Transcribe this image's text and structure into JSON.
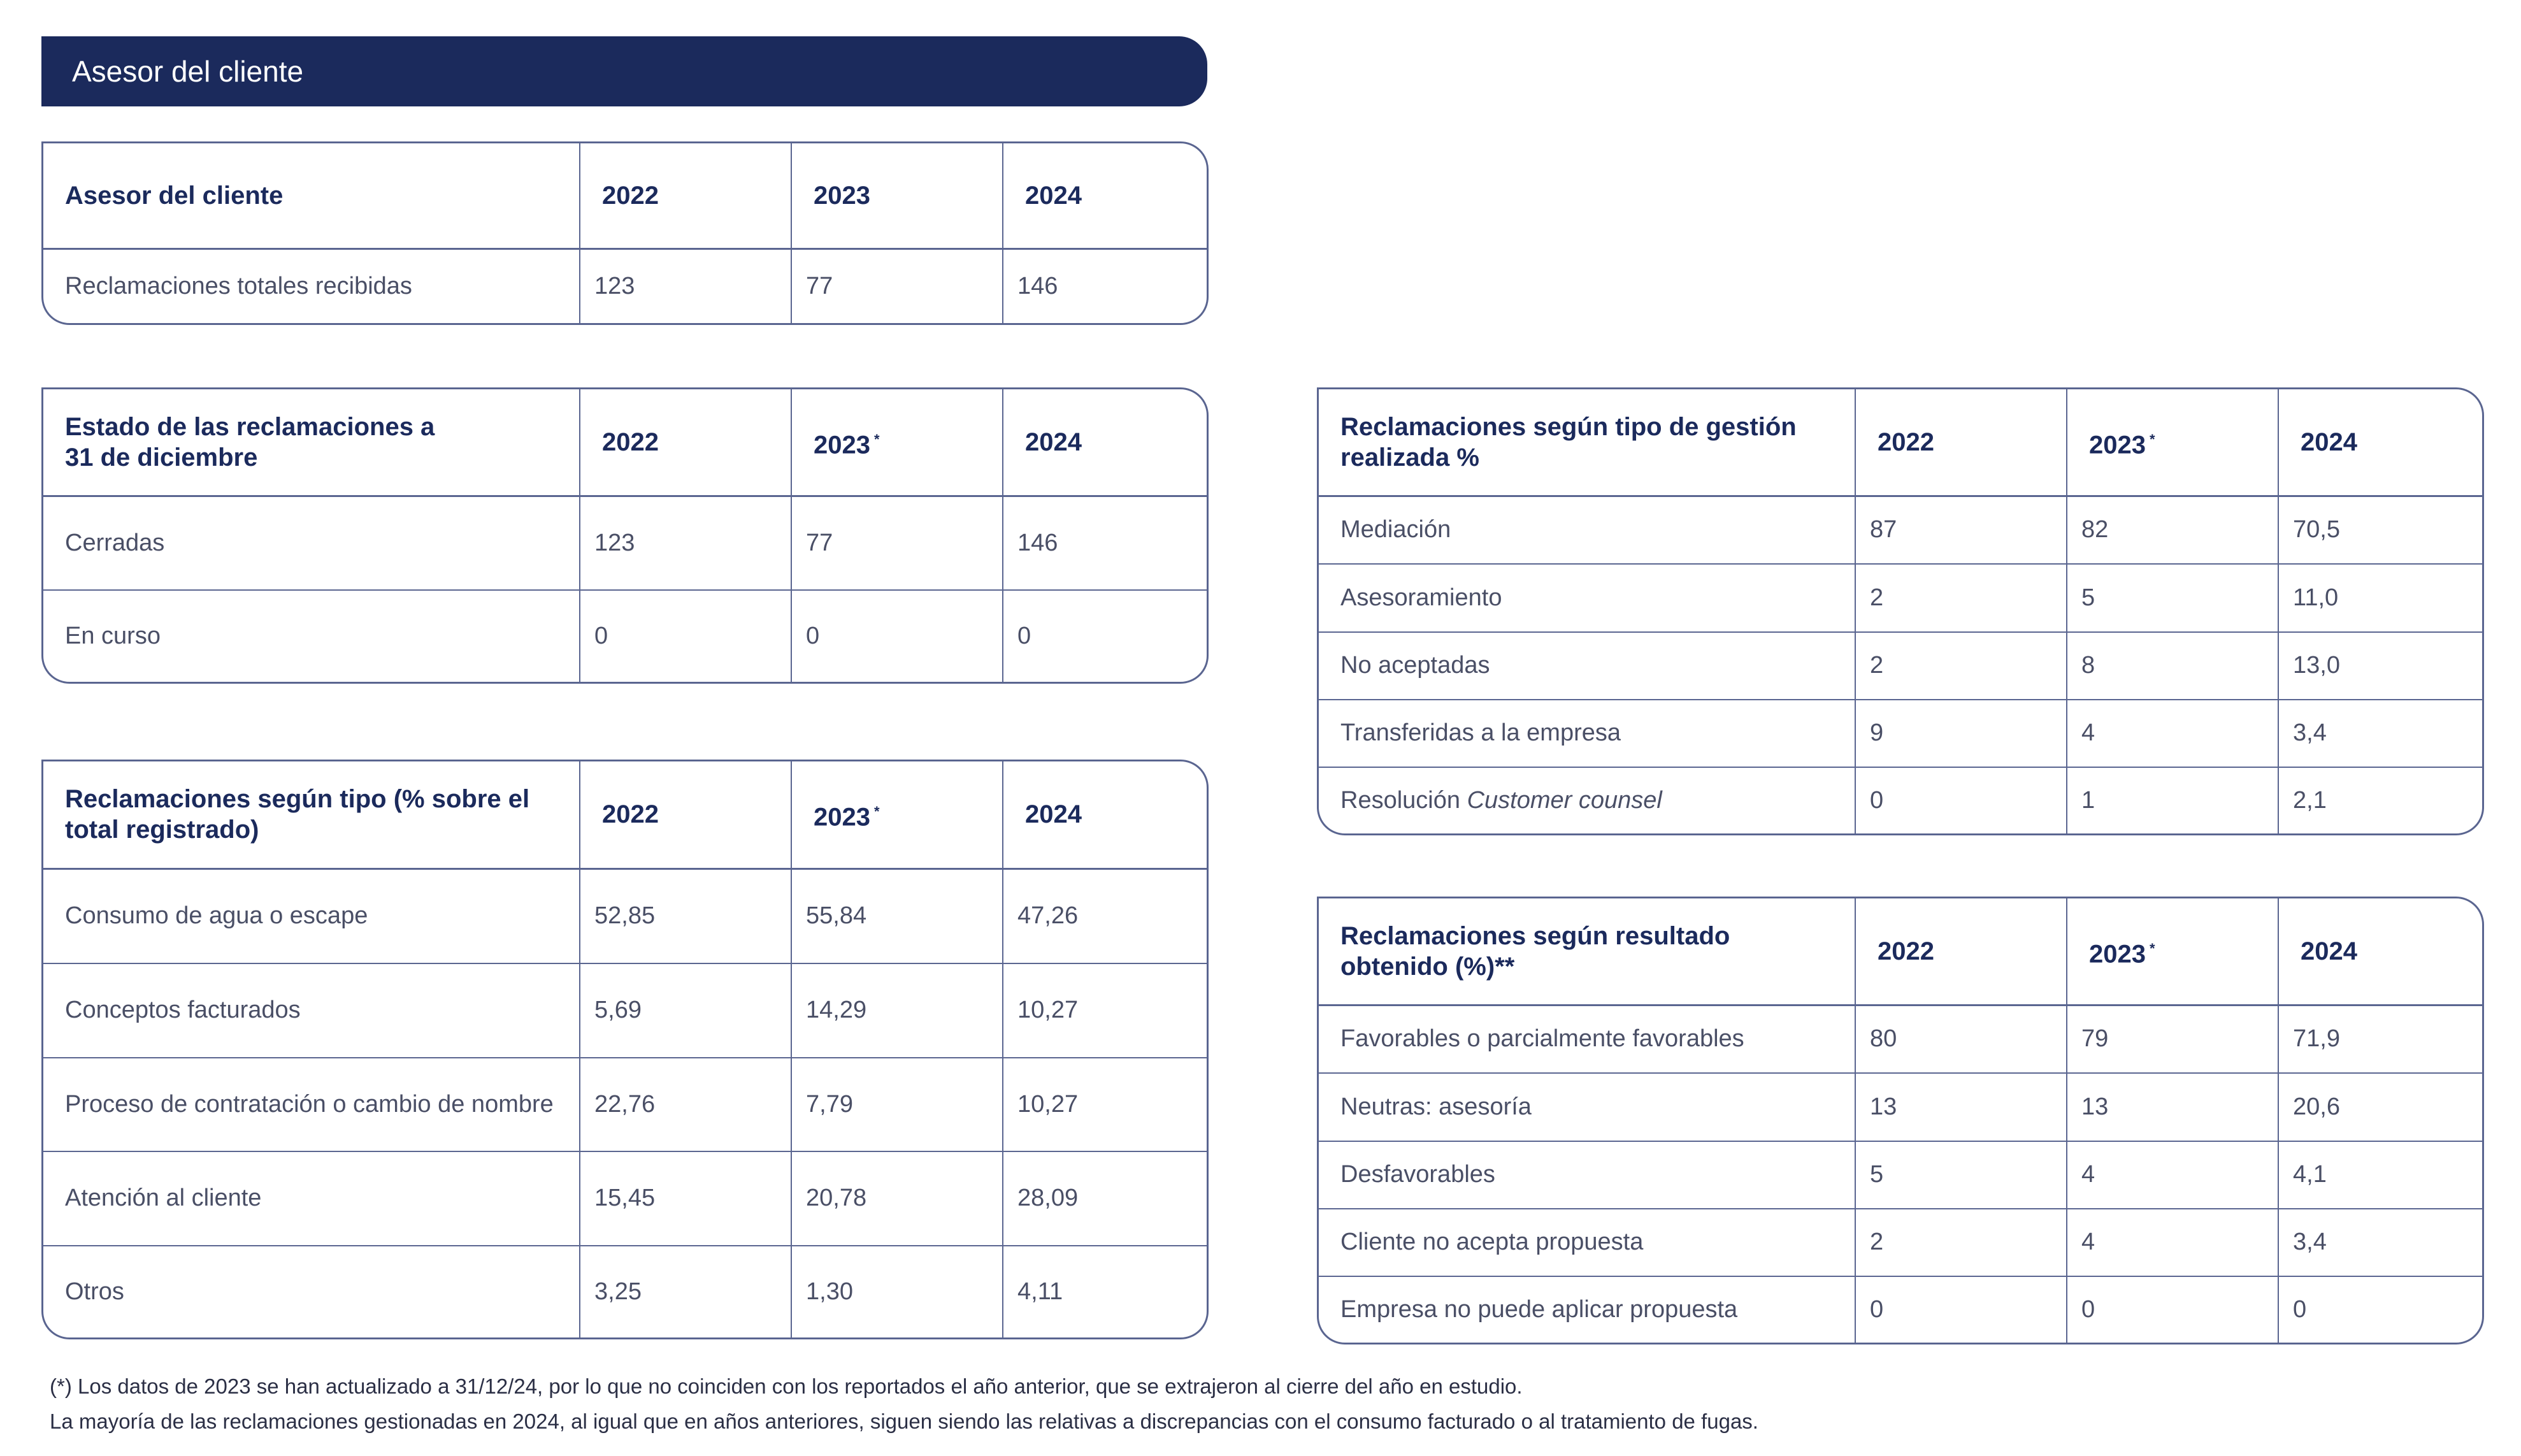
{
  "banner": {
    "title": "Asesor del cliente"
  },
  "t1": {
    "header": [
      "Asesor del cliente",
      "2022",
      "2023",
      "2024"
    ],
    "rows": [
      [
        "Reclamaciones totales recibidas",
        "123",
        "77",
        "146"
      ]
    ]
  },
  "t2": {
    "header_line1": "Estado de las reclamaciones a",
    "header_line2": "31 de diciembre",
    "years": [
      "2022",
      "2023",
      "2024"
    ],
    "mark": "*",
    "rows": [
      [
        "Cerradas",
        "123",
        "77",
        "146"
      ],
      [
        "En curso",
        "0",
        "0",
        "0"
      ]
    ]
  },
  "t3": {
    "header_line1": "Reclamaciones según tipo (% sobre el",
    "header_line2": "total registrado)",
    "years": [
      "2022",
      "2023",
      "2024"
    ],
    "mark": "*",
    "rows": [
      [
        "Consumo de agua o escape",
        "52,85",
        "55,84",
        "47,26"
      ],
      [
        "Conceptos facturados",
        "5,69",
        "14,29",
        "10,27"
      ],
      [
        "Proceso de contratación o cambio de nombre",
        "22,76",
        "7,79",
        "10,27"
      ],
      [
        "Atención al cliente",
        "15,45",
        "20,78",
        "28,09"
      ],
      [
        "Otros",
        "3,25",
        "1,30",
        "4,11"
      ]
    ]
  },
  "t4": {
    "header_line1": "Reclamaciones según tipo de gestión",
    "header_line2": "realizada %",
    "years": [
      "2022",
      "2023",
      "2024"
    ],
    "mark": "*",
    "rows": [
      [
        "Mediación",
        "87",
        "82",
        "70,5"
      ],
      [
        "Asesoramiento",
        "2",
        "5",
        "11,0"
      ],
      [
        "No aceptadas",
        "2",
        "8",
        "13,0"
      ],
      [
        "Transferidas a la empresa",
        "9",
        "4",
        "3,4"
      ],
      [
        "Resolución ",
        "0",
        "1",
        "2,1"
      ]
    ],
    "italic_suffix": "Customer counsel"
  },
  "t5": {
    "header_line1": "Reclamaciones según resultado",
    "header_line2": "obtenido (%)**",
    "years": [
      "2022",
      "2023",
      "2024"
    ],
    "mark": "*",
    "rows": [
      [
        "Favorables o parcialmente favorables",
        "80",
        "79",
        "71,9"
      ],
      [
        "Neutras: asesoría",
        "13",
        "13",
        "20,6"
      ],
      [
        "Desfavorables",
        "5",
        "4",
        "4,1"
      ],
      [
        "Cliente no acepta propuesta",
        "2",
        "4",
        "3,4"
      ],
      [
        "Empresa no puede aplicar propuesta",
        "0",
        "0",
        "0"
      ]
    ]
  },
  "notes": [
    "(*) Los datos de 2023 se han actualizado a 31/12/24, por lo que no coinciden con los reportados el año anterior, que se extrajeron al cierre del año en estudio.",
    "La mayoría de las reclamaciones gestionadas en 2024, al igual que en años anteriores, siguen siendo las relativas a discrepancias con el consumo facturado o al tratamiento de fugas."
  ]
}
